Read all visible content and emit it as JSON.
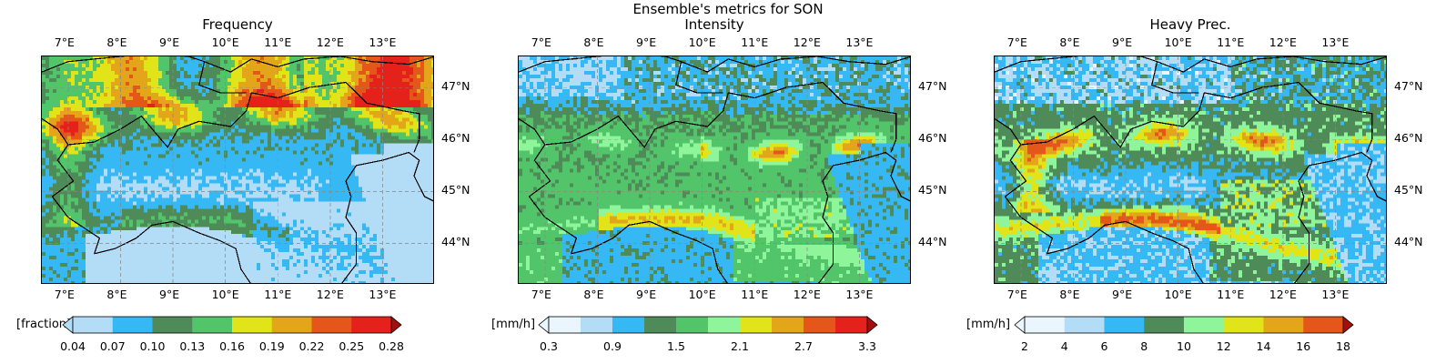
{
  "title": "Ensemble's metrics for SON",
  "chart_data": [
    {
      "type": "heatmap",
      "title": "Frequency",
      "x_ticks": [
        "7°E",
        "8°E",
        "9°E",
        "10°E",
        "11°E",
        "12°E",
        "13°E"
      ],
      "y_ticks": [
        "47°N",
        "46°N",
        "45°N",
        "44°N"
      ],
      "xlim": [
        6.5,
        14.0
      ],
      "ylim": [
        43.2,
        47.6
      ],
      "grid": true,
      "colorbar": {
        "label": "[fraction]",
        "levels": [
          0.04,
          0.07,
          0.1,
          0.13,
          0.16,
          0.19,
          0.22,
          0.25,
          0.28
        ],
        "tick_labels": [
          "0.04",
          "0.07",
          "0.10",
          "0.13",
          "0.16",
          "0.19",
          "0.22",
          "0.25",
          "0.28"
        ],
        "colors": [
          "#b3dcf6",
          "#36b8f5",
          "#4e8b58",
          "#52c56b",
          "#e1e419",
          "#e3a519",
          "#e5561b",
          "#e5211b"
        ],
        "extend": "both"
      }
    },
    {
      "type": "heatmap",
      "title": "Intensity",
      "x_ticks": [
        "7°E",
        "8°E",
        "9°E",
        "10°E",
        "11°E",
        "12°E",
        "13°E"
      ],
      "y_ticks": [
        "47°N",
        "46°N",
        "45°N",
        "44°N"
      ],
      "xlim": [
        6.5,
        14.0
      ],
      "ylim": [
        43.2,
        47.6
      ],
      "grid": true,
      "colorbar": {
        "label": "[mm/h]",
        "levels": [
          0.3,
          0.6,
          0.9,
          1.2,
          1.5,
          1.8,
          2.1,
          2.4,
          2.7,
          3.0,
          3.3
        ],
        "tick_labels": [
          "0.3",
          "",
          "0.9",
          "",
          "1.5",
          "",
          "2.1",
          "",
          "2.7",
          "",
          "3.3"
        ],
        "colors": [
          "#e9f6fd",
          "#b3dcf6",
          "#36b8f5",
          "#4e8b58",
          "#52c56b",
          "#8ff59b",
          "#e1e419",
          "#e3a519",
          "#e5561b",
          "#e5211b"
        ],
        "extend": "both"
      }
    },
    {
      "type": "heatmap",
      "title": "Heavy Prec.",
      "x_ticks": [
        "7°E",
        "8°E",
        "9°E",
        "10°E",
        "11°E",
        "12°E",
        "13°E"
      ],
      "y_ticks": [
        "47°N",
        "46°N",
        "45°N",
        "44°N"
      ],
      "xlim": [
        6.5,
        14.0
      ],
      "ylim": [
        43.2,
        47.6
      ],
      "grid": true,
      "colorbar": {
        "label": "[mm/h]",
        "levels": [
          2,
          4,
          6,
          8,
          10,
          12,
          14,
          16,
          18
        ],
        "tick_labels": [
          "2",
          "4",
          "6",
          "8",
          "10",
          "12",
          "14",
          "16",
          "18"
        ],
        "colors": [
          "#e9f6fd",
          "#b3dcf6",
          "#36b8f5",
          "#4e8b58",
          "#8ff59b",
          "#e1e419",
          "#e3a519",
          "#e5561b"
        ],
        "extend": "both"
      }
    }
  ]
}
